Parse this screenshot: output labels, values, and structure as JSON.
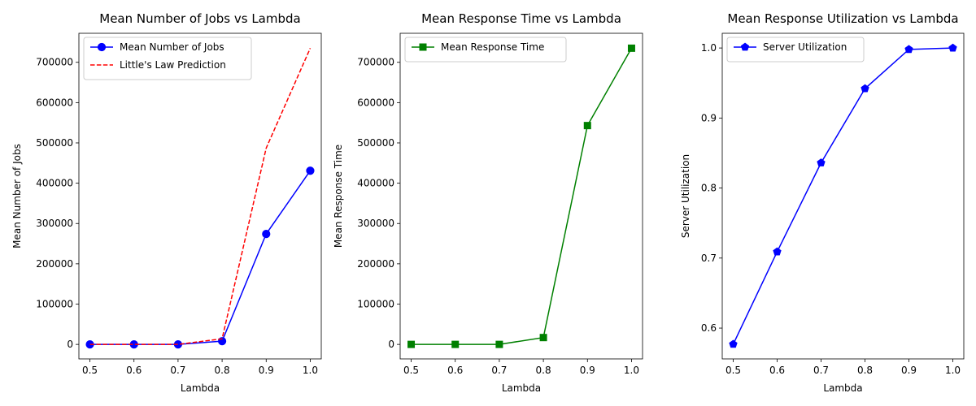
{
  "chart_data": [
    {
      "type": "line",
      "title": "Mean Number of Jobs vs Lambda",
      "xlabel": "Lambda",
      "ylabel": "Mean Number of Jobs",
      "xlim": [
        0.475,
        1.025
      ],
      "ylim": [
        -36000,
        772000
      ],
      "xticks": [
        0.5,
        0.6,
        0.7,
        0.8,
        0.9,
        1.0
      ],
      "xtick_labels": [
        "0.5",
        "0.6",
        "0.7",
        "0.8",
        "0.9",
        "1.0"
      ],
      "yticks": [
        0,
        100000,
        200000,
        300000,
        400000,
        500000,
        600000,
        700000
      ],
      "ytick_labels": [
        "0",
        "100000",
        "200000",
        "300000",
        "400000",
        "500000",
        "600000",
        "700000"
      ],
      "legend_position": "upper-left",
      "x": [
        0.5,
        0.6,
        0.7,
        0.8,
        0.9,
        1.0
      ],
      "series": [
        {
          "name": "Mean Number of Jobs",
          "values": [
            1,
            1,
            2,
            8000,
            274000,
            431000
          ],
          "color": "#0000ff",
          "style": "solid",
          "marker": "circle"
        },
        {
          "name": "Little's Law Prediction",
          "values": [
            1,
            1,
            2,
            14000,
            487000,
            735000
          ],
          "color": "#ff0000",
          "style": "dashed",
          "marker": "none"
        }
      ]
    },
    {
      "type": "line",
      "title": "Mean Response Time vs Lambda",
      "xlabel": "Lambda",
      "ylabel": "Mean Response Time",
      "xlim": [
        0.475,
        1.025
      ],
      "ylim": [
        -36000,
        772000
      ],
      "xticks": [
        0.5,
        0.6,
        0.7,
        0.8,
        0.9,
        1.0
      ],
      "xtick_labels": [
        "0.5",
        "0.6",
        "0.7",
        "0.8",
        "0.9",
        "1.0"
      ],
      "yticks": [
        0,
        100000,
        200000,
        300000,
        400000,
        500000,
        600000,
        700000
      ],
      "ytick_labels": [
        "0",
        "100000",
        "200000",
        "300000",
        "400000",
        "500000",
        "600000",
        "700000"
      ],
      "legend_position": "upper-left",
      "x": [
        0.5,
        0.6,
        0.7,
        0.8,
        0.9,
        1.0
      ],
      "series": [
        {
          "name": "Mean Response Time",
          "values": [
            1,
            2,
            2,
            17000,
            543000,
            735000
          ],
          "color": "#008000",
          "style": "solid",
          "marker": "square"
        }
      ]
    },
    {
      "type": "line",
      "title": "Mean Response Utilization vs Lambda",
      "xlabel": "Lambda",
      "ylabel": "Server Utilization",
      "xlim": [
        0.475,
        1.025
      ],
      "ylim": [
        0.556,
        1.021
      ],
      "xticks": [
        0.5,
        0.6,
        0.7,
        0.8,
        0.9,
        1.0
      ],
      "xtick_labels": [
        "0.5",
        "0.6",
        "0.7",
        "0.8",
        "0.9",
        "1.0"
      ],
      "yticks": [
        0.6,
        0.7,
        0.8,
        0.9,
        1.0
      ],
      "ytick_labels": [
        "0.6",
        "0.7",
        "0.8",
        "0.9",
        "1.0"
      ],
      "legend_position": "upper-left",
      "x": [
        0.5,
        0.6,
        0.7,
        0.8,
        0.9,
        1.0
      ],
      "series": [
        {
          "name": "Server Utilization",
          "values": [
            0.577,
            0.709,
            0.836,
            0.942,
            0.998,
            1.0
          ],
          "color": "#0000ff",
          "style": "solid",
          "marker": "pentagon"
        }
      ]
    }
  ]
}
